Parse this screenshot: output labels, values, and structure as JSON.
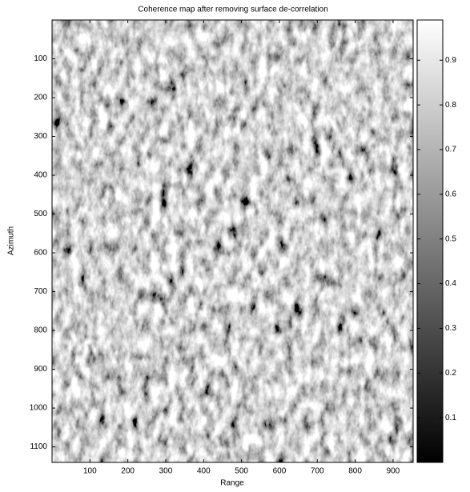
{
  "chart_data": {
    "type": "image",
    "title": "Coherence map after removing surface de-correlation",
    "xlabel": "Range",
    "ylabel": "Azimuth",
    "xlim": [
      0,
      953
    ],
    "xticks": [
      100,
      200,
      300,
      400,
      500,
      600,
      700,
      800,
      900
    ],
    "ylim": [
      0,
      1140
    ],
    "y_reversed": true,
    "yticks": [
      100,
      200,
      300,
      400,
      500,
      600,
      700,
      800,
      900,
      1000,
      1100
    ],
    "colormap": [
      "#000000",
      "#ffffff"
    ],
    "colorbar": {
      "lim": [
        0,
        0.99
      ],
      "ticks": [
        0.1,
        0.2,
        0.3,
        0.4,
        0.5,
        0.6,
        0.7,
        0.8,
        0.9
      ]
    }
  }
}
